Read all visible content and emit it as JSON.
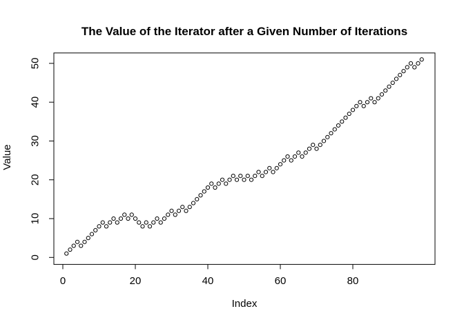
{
  "title": "The Value of the Iterator after a Given Number of Iterations",
  "chart_data": {
    "type": "scatter",
    "title": "The Value of the Iterator after a Given Number of Iterations",
    "xlabel": "Index",
    "ylabel": "Value",
    "x_ticks": [
      0,
      20,
      40,
      60,
      80
    ],
    "y_ticks": [
      0,
      10,
      20,
      30,
      40,
      50
    ],
    "xlim": [
      -3,
      103
    ],
    "ylim": [
      -1,
      53
    ],
    "grid": false,
    "legend": "none",
    "point_style": "open-circle",
    "point_color": "#000000",
    "background": "#ffffff",
    "x": [
      1,
      2,
      3,
      4,
      5,
      6,
      7,
      8,
      9,
      10,
      11,
      12,
      13,
      14,
      15,
      16,
      17,
      18,
      19,
      20,
      21,
      22,
      23,
      24,
      25,
      26,
      27,
      28,
      29,
      30,
      31,
      32,
      33,
      34,
      35,
      36,
      37,
      38,
      39,
      40,
      41,
      42,
      43,
      44,
      45,
      46,
      47,
      48,
      49,
      50,
      51,
      52,
      53,
      54,
      55,
      56,
      57,
      58,
      59,
      60,
      61,
      62,
      63,
      64,
      65,
      66,
      67,
      68,
      69,
      70,
      71,
      72,
      73,
      74,
      75,
      76,
      77,
      78,
      79,
      80,
      81,
      82,
      83,
      84,
      85,
      86,
      87,
      88,
      89,
      90,
      91,
      92,
      93,
      94,
      95,
      96,
      97,
      98,
      99
    ],
    "values": [
      1,
      2,
      3,
      4,
      3,
      4,
      5,
      6,
      7,
      8,
      9,
      8,
      9,
      10,
      9,
      10,
      11,
      10,
      11,
      10,
      9,
      8,
      9,
      8,
      9,
      10,
      9,
      10,
      11,
      12,
      11,
      12,
      13,
      12,
      13,
      14,
      15,
      16,
      17,
      18,
      19,
      18,
      19,
      20,
      19,
      20,
      21,
      20,
      21,
      20,
      21,
      20,
      21,
      22,
      21,
      22,
      23,
      22,
      23,
      24,
      25,
      26,
      25,
      26,
      27,
      26,
      27,
      28,
      29,
      28,
      29,
      30,
      31,
      32,
      33,
      34,
      35,
      36,
      37,
      38,
      39,
      40,
      39,
      40,
      41,
      40,
      41,
      42,
      43,
      44,
      45,
      46,
      47,
      48,
      49,
      50,
      49,
      50,
      51
    ]
  }
}
